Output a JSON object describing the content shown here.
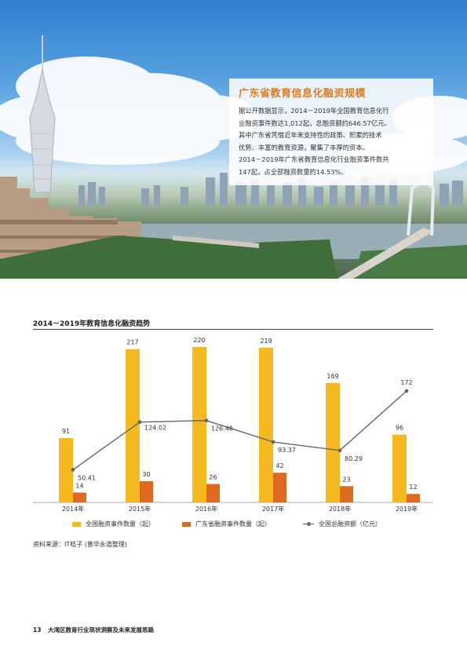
{
  "hero": {
    "title": "广东省教育信息化融资规模",
    "lines": [
      "据公开数据显示，2014－2019年全国教育信息化行",
      "业融资事件数达1,012起，总融资额约646.57亿元。",
      "其中广东省凭借近年来支持性的政策、积累的技术",
      "优势、丰富的教育资源，聚集了丰厚的资本。",
      "2014－2019年广东省教育信息化行业融资事件数共",
      "147起，占全部融资数量的14.53%。"
    ]
  },
  "chart_data": {
    "type": "bar",
    "title": "2014－2019年教育信息化融资趋势",
    "categories": [
      "2014年",
      "2015年",
      "2016年",
      "2017年",
      "2018年",
      "2019年"
    ],
    "series": [
      {
        "name": "全国融资事件数量（起）",
        "type": "bar",
        "color": "#f5b91f",
        "values": [
          91,
          217,
          220,
          219,
          169,
          96
        ]
      },
      {
        "name": "广东省融资事件数量（起）",
        "type": "bar",
        "color": "#dd6a1f",
        "values": [
          14,
          30,
          26,
          42,
          23,
          12
        ]
      },
      {
        "name": "全国总融资额（亿元）",
        "type": "line",
        "color": "#666666",
        "values": [
          50.41,
          124.02,
          126.48,
          93.37,
          80.29,
          172
        ]
      }
    ],
    "bar_ylim": [
      0,
      220
    ],
    "line_ylim": [
      0,
      240
    ],
    "legend_position": "bottom",
    "grid": false
  },
  "source": "资料来源：IT桔子 (普华永道整理)",
  "footer": {
    "page": "13",
    "text": "大湾区教育行业现状洞察及未来发展思路"
  }
}
